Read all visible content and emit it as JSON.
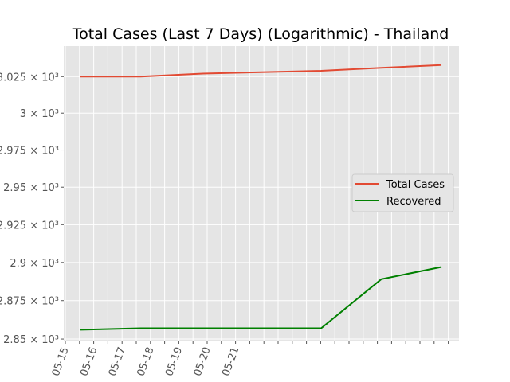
{
  "chart_data": {
    "type": "line",
    "title": "Total Cases (Last 7 Days) (Logarithmic) - Thailand",
    "xlabel": "",
    "ylabel": "",
    "y_scale": "log",
    "grid": true,
    "legend_position": "center-right",
    "x": [
      "2020-05-15",
      "2020-05-16",
      "2020-05-17",
      "2020-05-18",
      "2020-05-19",
      "2020-05-20",
      "2020-05-21"
    ],
    "x_tick_labels": [
      "05-15",
      "05-16",
      "05-17",
      "05-18",
      "05-19",
      "05-20",
      "05-21"
    ],
    "y_ticks": [
      2850,
      2875,
      2900,
      2925,
      2950,
      2975,
      3000,
      3025
    ],
    "y_tick_labels": [
      "2.85 × 10³",
      "2.875 × 10³",
      "2.9 × 10³",
      "2.925 × 10³",
      "2.95 × 10³",
      "2.975 × 10³",
      "3 × 10³",
      "3.025 × 10³"
    ],
    "ylim": [
      2849,
      3046
    ],
    "series": [
      {
        "name": "Total Cases",
        "color": "#E24A33",
        "values": [
          3025,
          3025,
          3027,
          3028,
          3029,
          3031,
          3033
        ]
      },
      {
        "name": "Recovered",
        "color": "#008000",
        "values": [
          2856,
          2857,
          2857,
          2857,
          2857,
          2889,
          2897
        ]
      }
    ]
  }
}
